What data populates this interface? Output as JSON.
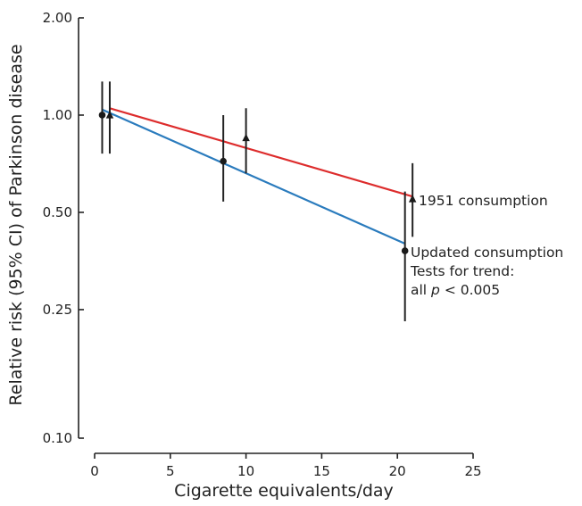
{
  "chart_data": {
    "type": "scatter",
    "xlabel": "Cigarette equivalents/day",
    "ylabel": "Relative risk (95% CI) of Parkinson disease",
    "xlim": [
      0,
      25
    ],
    "ylim": [
      0.1,
      2.0
    ],
    "yscale": "log",
    "xticks": [
      {
        "value": 0,
        "label": "0"
      },
      {
        "value": 5,
        "label": "5"
      },
      {
        "value": 10,
        "label": "10"
      },
      {
        "value": 15,
        "label": "15"
      },
      {
        "value": 20,
        "label": "20"
      },
      {
        "value": 25,
        "label": "25"
      }
    ],
    "yticks": [
      {
        "value": 2.0,
        "label": "2.00"
      },
      {
        "value": 1.0,
        "label": "1.00"
      },
      {
        "value": 0.5,
        "label": "0.50"
      },
      {
        "value": 0.25,
        "label": "0.25"
      },
      {
        "value": 0.1,
        "label": "0.10"
      }
    ],
    "grid": false,
    "series": [
      {
        "name": "Updated consumption",
        "marker": "circle",
        "color": "#2a7bbd",
        "points": [
          {
            "x": 0.5,
            "y": 1.0,
            "lo": 0.76,
            "hi": 1.27
          },
          {
            "x": 8.5,
            "y": 0.72,
            "lo": 0.54,
            "hi": 1.0
          },
          {
            "x": 20.5,
            "y": 0.38,
            "lo": 0.23,
            "hi": 0.58
          }
        ],
        "trend": [
          {
            "x": 0.5,
            "y": 1.04
          },
          {
            "x": 20.5,
            "y": 0.4
          }
        ]
      },
      {
        "name": "1951 consumption",
        "marker": "triangle",
        "color": "#dd2c2c",
        "points": [
          {
            "x": 1.0,
            "y": 1.0,
            "lo": 0.76,
            "hi": 1.27
          },
          {
            "x": 10.0,
            "y": 0.85,
            "lo": 0.66,
            "hi": 1.05
          },
          {
            "x": 21.0,
            "y": 0.55,
            "lo": 0.42,
            "hi": 0.71
          }
        ],
        "trend": [
          {
            "x": 1.0,
            "y": 1.05
          },
          {
            "x": 21.0,
            "y": 0.56
          }
        ]
      }
    ],
    "annotations": {
      "line1951": "1951 consumption",
      "lineUpdated": "Updated consumption",
      "trendLine1": "Tests for trend:",
      "trendPrefix": "all ",
      "trendP": "p",
      "trendSuffix": " < 0.005"
    }
  }
}
